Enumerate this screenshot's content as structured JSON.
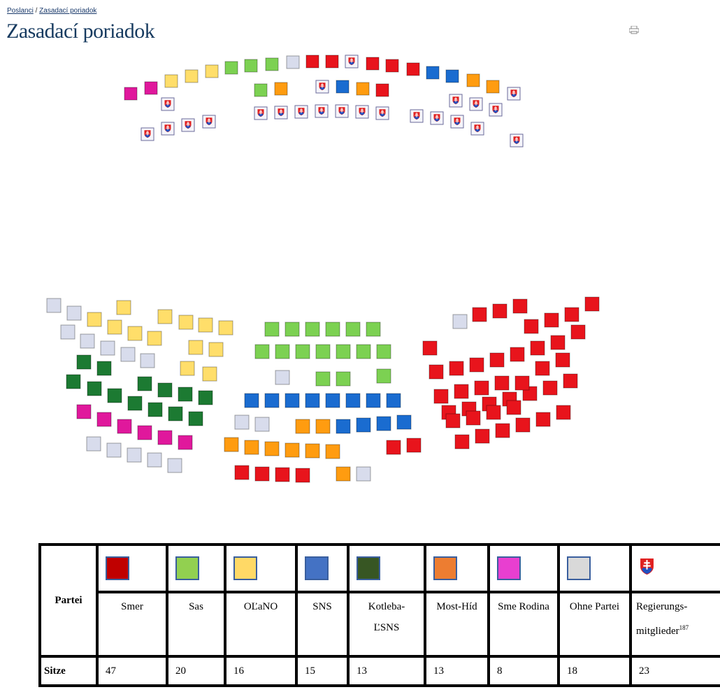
{
  "breadcrumb": [
    "Poslanci",
    "Zasadací poriadok"
  ],
  "breadcrumb_separator": "/",
  "title": "Zasadací poriadok",
  "table": {
    "header": "Partei",
    "row_label": "Sitze",
    "parties": [
      {
        "name": "Smer",
        "seats": 47
      },
      {
        "name": "Sas",
        "seats": 20
      },
      {
        "name": "OĽaNO",
        "seats": 16
      },
      {
        "name": "SNS",
        "seats": 15
      },
      {
        "name": "Kotleba-ĽSNS",
        "seats": 13
      },
      {
        "name": "Most-Híd",
        "seats": 13
      },
      {
        "name": "Sme Rodina",
        "seats": 8
      },
      {
        "name": "Ohne Partei",
        "seats": 18
      },
      {
        "name": "Regierungs-mitglieder",
        "footnote": "187",
        "seats": 23
      }
    ]
  }
}
